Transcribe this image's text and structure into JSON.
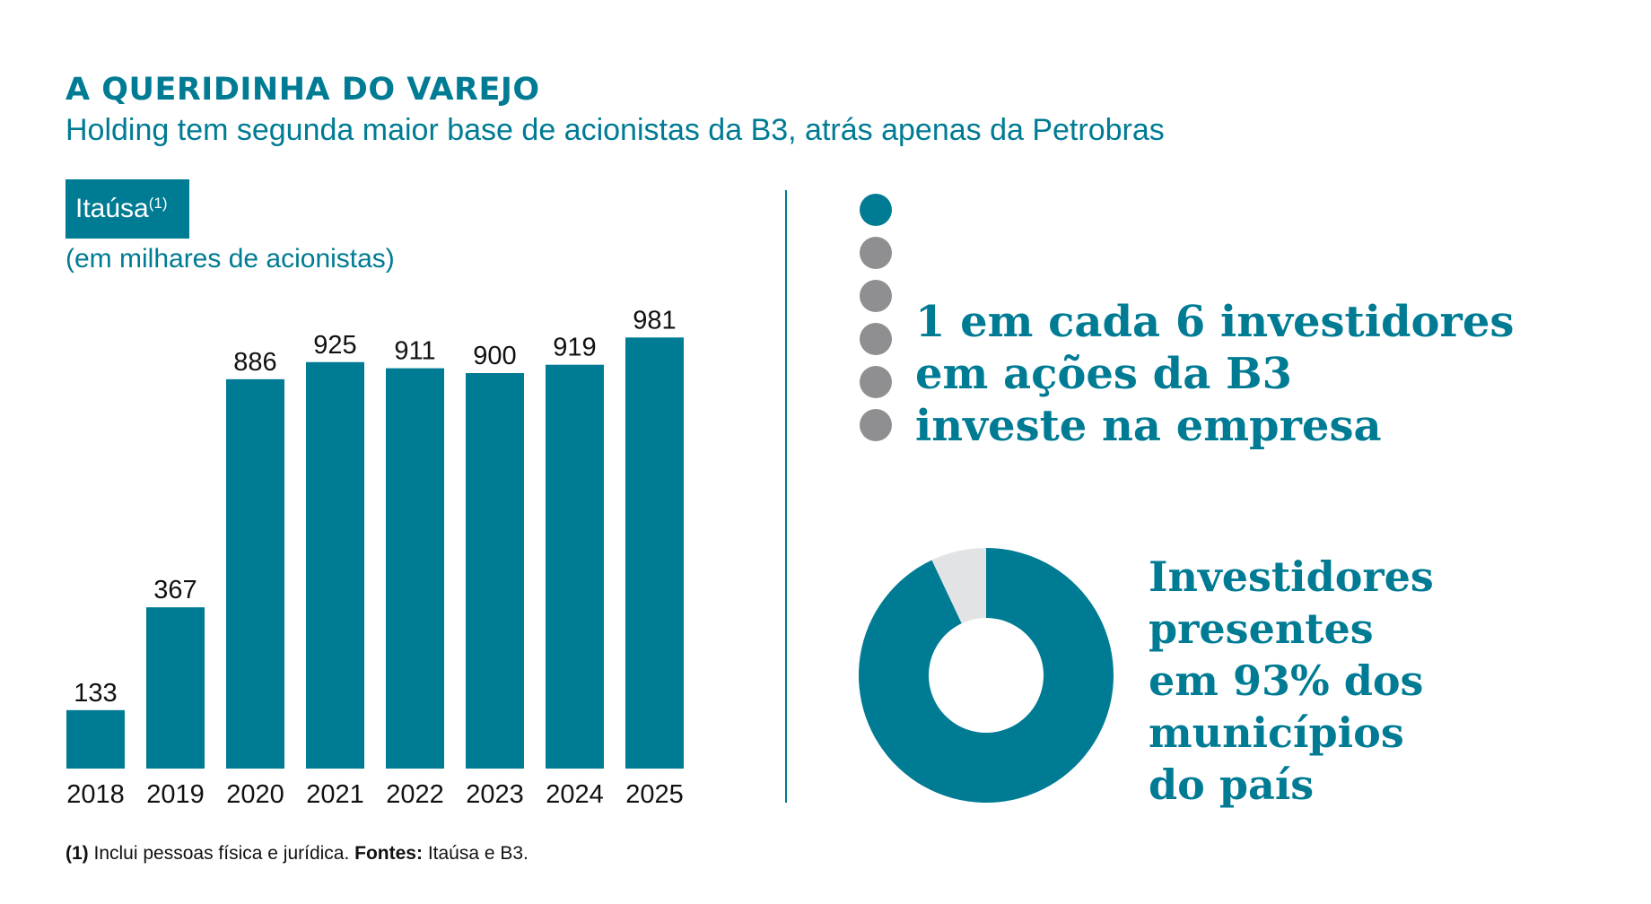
{
  "header": {
    "title": "A QUERIDINHA DO VAREJO",
    "subtitle": "Holding tem segunda maior base de acionistas da B3, atrás apenas da Petrobras"
  },
  "badge": {
    "label": "Itaúsa",
    "note_mark": "(1)"
  },
  "unit_label": "(em milhares de acionistas)",
  "chart_data": {
    "type": "bar",
    "categories": [
      "2018",
      "2019",
      "2020",
      "2021",
      "2022",
      "2023",
      "2024",
      "2025"
    ],
    "values": [
      133,
      367,
      886,
      925,
      911,
      900,
      919,
      981
    ],
    "title": "",
    "xlabel": "",
    "ylabel": "",
    "ylim": [
      0,
      1000
    ],
    "data_labels": true,
    "grid": false,
    "color": "#007b94"
  },
  "stat1": {
    "lines": [
      "1 em cada 6 investidores",
      "em ações da B3",
      "investe na empresa"
    ],
    "dots": {
      "highlighted": 1,
      "total": 6,
      "highlight_color": "#007b94",
      "other_color": "#8f8f91"
    }
  },
  "stat2": {
    "lines": [
      "Investidores",
      "presentes",
      "em 93% dos",
      "municípios",
      "do país"
    ],
    "donut": {
      "type": "pie",
      "values": [
        93,
        7
      ],
      "colors": [
        "#007b94",
        "#e1e3e4"
      ]
    }
  },
  "footnote": {
    "mark": "(1)",
    "text": " Inclui pessoas física e jurídica. ",
    "sources_label": "Fontes:",
    "sources": " Itaúsa e B3."
  }
}
